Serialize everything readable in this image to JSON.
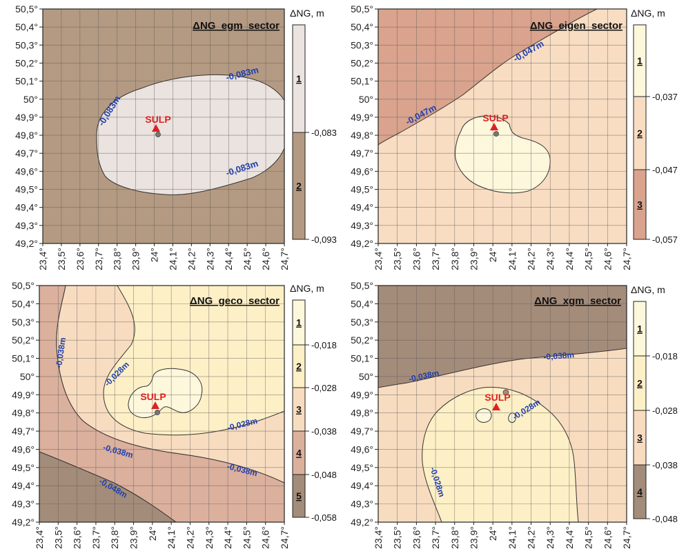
{
  "axes": {
    "lat_ticks": [
      "50,5°",
      "50,4°",
      "50,3°",
      "50,2°",
      "50,1°",
      "50°",
      "49,9°",
      "49,8°",
      "49,7°",
      "49,6°",
      "49,5°",
      "49,4°",
      "49,3°",
      "49,2°"
    ],
    "lon_ticks": [
      "23,4°",
      "23,5°",
      "23,6°",
      "23,7°",
      "23,8°",
      "23,9°",
      "24°",
      "24,1°",
      "24,2°",
      "24,3°",
      "24,4°",
      "24,5°",
      "24,6°",
      "24,7°"
    ],
    "lat_range": [
      49.2,
      50.5
    ],
    "lon_range": [
      23.4,
      24.7
    ]
  },
  "station": {
    "name": "SULP",
    "lon": 24.02,
    "lat": 49.84,
    "color": "#e02020"
  },
  "contour_label_color": "#1f3fae",
  "panels": [
    {
      "id": "egm",
      "title": "ΔNG_egm_sector",
      "legend_title": "ΔNG, m",
      "classes": [
        {
          "num": "1",
          "color": "#ebe3df"
        },
        {
          "num": "2",
          "color": "#b49a82"
        }
      ],
      "breaks": [
        "-0,083",
        "-0,093"
      ],
      "contour_labels": [
        "-0,083m",
        "-0,083m",
        "-0,083m"
      ]
    },
    {
      "id": "eigen",
      "title": "ΔNG_eigen_sector",
      "legend_title": "ΔNG, m",
      "classes": [
        {
          "num": "1",
          "color": "#fdf7dc"
        },
        {
          "num": "2",
          "color": "#f8ddc2"
        },
        {
          "num": "3",
          "color": "#d9a38d"
        }
      ],
      "breaks": [
        "-0,037",
        "-0,047",
        "-0,057"
      ],
      "contour_labels": [
        "-0,047m",
        "-0,047m"
      ]
    },
    {
      "id": "geco",
      "title": "ΔNG_geco_sector",
      "legend_title": "ΔNG, m",
      "classes": [
        {
          "num": "1",
          "color": "#fdf7dc"
        },
        {
          "num": "2",
          "color": "#fdf0c6"
        },
        {
          "num": "3",
          "color": "#f8dcc0"
        },
        {
          "num": "4",
          "color": "#dbb09d"
        },
        {
          "num": "5",
          "color": "#a48c7a"
        }
      ],
      "breaks": [
        "-0,018",
        "-0,028",
        "-0,038",
        "-0,048",
        "-0,058"
      ],
      "contour_labels": [
        "-0,038m",
        "-0,028m",
        "-0,028m",
        "-0,038m",
        "-0,038m",
        "-0,048m"
      ]
    },
    {
      "id": "xgm",
      "title": "ΔNG_xgm_sector",
      "legend_title": "ΔNG, m",
      "classes": [
        {
          "num": "1",
          "color": "#fdf7dc"
        },
        {
          "num": "2",
          "color": "#fdf0c6"
        },
        {
          "num": "3",
          "color": "#f8dcc0"
        },
        {
          "num": "4",
          "color": "#a48c7a"
        }
      ],
      "breaks": [
        "-0,018",
        "-0,028",
        "-0,038",
        "-0,048"
      ],
      "contour_labels": [
        "-0,038m",
        "-0,038m",
        "-0,028m",
        "-0,028m"
      ]
    }
  ]
}
